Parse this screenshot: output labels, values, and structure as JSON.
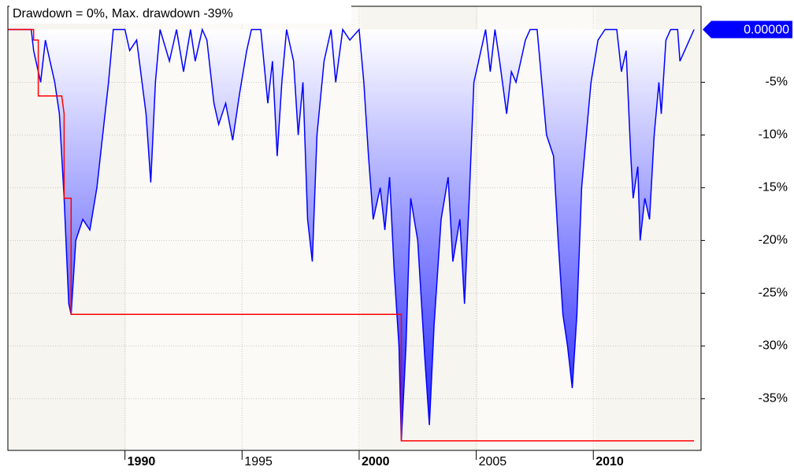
{
  "chart_data": {
    "type": "area",
    "title": "Drawdown = 0%, Max. drawdown -39%",
    "last_value_label": "0.00000",
    "xlim": [
      1985,
      2014.6
    ],
    "ylim": [
      -39.9,
      2.2
    ],
    "xticks": [
      1990,
      1995,
      2000,
      2005,
      2010
    ],
    "yticks": [
      {
        "value": -5,
        "label": "-5%"
      },
      {
        "value": -10,
        "label": "-10%"
      },
      {
        "value": -15,
        "label": "-15%"
      },
      {
        "value": -20,
        "label": "-20%"
      },
      {
        "value": -25,
        "label": "-25%"
      },
      {
        "value": -30,
        "label": "-30%"
      },
      {
        "value": -35,
        "label": "-35%"
      }
    ],
    "grid": true,
    "series": [
      {
        "name": "Drawdown",
        "color": "#0000ff",
        "fill": "gradient",
        "x": [
          1985.0,
          1986.0,
          1986.1,
          1986.3,
          1986.4,
          1986.6,
          1986.8,
          1987.0,
          1987.2,
          1987.4,
          1987.6,
          1987.7,
          1987.9,
          1988.2,
          1988.5,
          1988.8,
          1989.0,
          1989.3,
          1989.5,
          1990.0,
          1990.2,
          1990.5,
          1990.9,
          1991.1,
          1991.3,
          1991.5,
          1991.9,
          1992.2,
          1992.5,
          1992.8,
          1993.0,
          1993.3,
          1993.5,
          1993.8,
          1994.0,
          1994.3,
          1994.6,
          1994.9,
          1995.2,
          1995.4,
          1995.8,
          1996.1,
          1996.3,
          1996.5,
          1996.7,
          1996.9,
          1997.2,
          1997.4,
          1997.6,
          1997.8,
          1998.0,
          1998.2,
          1998.5,
          1998.8,
          1999.0,
          1999.3,
          1999.6,
          2000.0,
          2000.2,
          2000.4,
          2000.6,
          2000.9,
          2001.1,
          2001.3,
          2001.5,
          2001.7,
          2001.8,
          2002.0,
          2002.2,
          2002.5,
          2002.8,
          2003.0,
          2003.2,
          2003.5,
          2003.8,
          2004.0,
          2004.3,
          2004.5,
          2004.7,
          2004.9,
          2005.1,
          2005.4,
          2005.6,
          2005.8,
          2006.0,
          2006.3,
          2006.5,
          2006.7,
          2006.9,
          2007.1,
          2007.3,
          2007.6,
          2007.8,
          2008.0,
          2008.3,
          2008.5,
          2008.7,
          2008.9,
          2009.1,
          2009.3,
          2009.5,
          2009.7,
          2009.9,
          2010.2,
          2010.5,
          2011.0,
          2011.2,
          2011.4,
          2011.6,
          2011.7,
          2011.9,
          2012.0,
          2012.2,
          2012.4,
          2012.6,
          2012.8,
          2012.9,
          2013.1,
          2013.3,
          2013.6,
          2013.7,
          2013.9,
          2014.1,
          2014.3
        ],
        "values": [
          0,
          0,
          -2,
          -4,
          -5,
          -1,
          -3,
          -5,
          -8,
          -16,
          -26,
          -27,
          -20,
          -18,
          -19,
          -15,
          -11,
          -5,
          0,
          0,
          -2,
          -1,
          -8,
          -14.5,
          -5,
          0,
          -3,
          0,
          -4,
          0,
          -3,
          0,
          -1,
          -7,
          -9,
          -7,
          -10.5,
          -6,
          -2,
          0,
          0,
          -7,
          -3,
          -12,
          -5,
          0,
          -3,
          -10,
          -5,
          -18,
          -22,
          -10,
          -3,
          0,
          -5,
          0,
          -1,
          0,
          -5,
          -12,
          -18,
          -15,
          -19,
          -14,
          -23,
          -30,
          -39,
          -30,
          -16,
          -20,
          -31,
          -37.5,
          -28,
          -18,
          -14,
          -22,
          -18,
          -26,
          -16,
          -5,
          -3,
          0,
          -4,
          0,
          -3,
          -8,
          -4,
          -5,
          -3,
          -1,
          0,
          0,
          -5,
          -10,
          -12,
          -20,
          -27,
          -30,
          -34,
          -27,
          -15,
          -10,
          -5,
          -1,
          0,
          0,
          -4,
          -2,
          -12,
          -16,
          -13,
          -20,
          -16,
          -18,
          -10,
          -5,
          -8,
          -1,
          0,
          0,
          -3,
          -2,
          -1,
          0
        ]
      },
      {
        "name": "Max. drawdown",
        "color": "#ff0000",
        "fill": "none",
        "x": [
          1985.0,
          1986.1,
          1986.1,
          1986.3,
          1986.3,
          1987.3,
          1987.4,
          1987.4,
          1987.7,
          1987.7,
          2001.6,
          2001.8,
          2001.8,
          2014.3
        ],
        "values": [
          0,
          0,
          -1,
          -1,
          -6.3,
          -6.3,
          -8,
          -16,
          -16,
          -27,
          -27,
          -27,
          -39,
          -39
        ]
      }
    ]
  }
}
